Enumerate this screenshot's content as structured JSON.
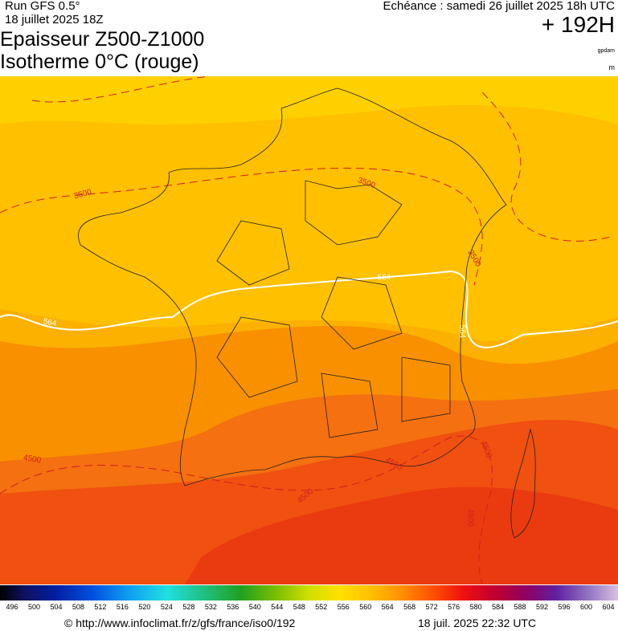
{
  "header": {
    "run": "Run GFS 0.5°",
    "run_date": "18 juillet 2025 18Z",
    "title_line1": "Epaisseur Z500-Z1000",
    "title_line2": "Isotherme 0°C (rouge)",
    "echeance": "Echéance : samedi 26 juillet 2025 18h UTC",
    "lead_time": "+ 192H",
    "unit_thickness": "gpdam",
    "unit_iso0": "m"
  },
  "map": {
    "contour_labels": [
      "3500",
      "3500",
      "3500",
      "564",
      "564",
      "564",
      "4500",
      "4500",
      "4500",
      "4500",
      "4500"
    ]
  },
  "colorbar": {
    "ticks": [
      496,
      500,
      504,
      508,
      512,
      516,
      520,
      524,
      528,
      532,
      536,
      540,
      544,
      548,
      552,
      556,
      560,
      564,
      568,
      572,
      576,
      580,
      584,
      588,
      592,
      596,
      600,
      604
    ]
  },
  "footer": {
    "url": "© http://www.infoclimat.fr/z/gfs/france/iso0/192",
    "timestamp": "18 juil. 2025 22:32 UTC"
  }
}
